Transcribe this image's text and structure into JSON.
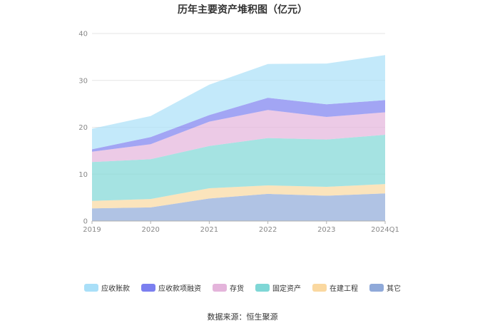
{
  "source_text": "数据来源：恒生聚源",
  "chart_data": {
    "type": "area",
    "stacked": true,
    "title": "历年主要资产堆积图（亿元）",
    "categories": [
      "2019",
      "2020",
      "2021",
      "2022",
      "2023",
      "2024Q1"
    ],
    "ylim": [
      0,
      40
    ],
    "yticks": [
      0,
      10,
      20,
      30,
      40
    ],
    "grid": true,
    "legend_position": "bottom",
    "series": [
      {
        "name": "其它",
        "color": "#8fa9d9",
        "values": [
          2.7,
          2.9,
          4.8,
          5.8,
          5.4,
          5.9
        ]
      },
      {
        "name": "在建工程",
        "color": "#fad8a0",
        "values": [
          1.6,
          1.8,
          2.2,
          1.8,
          1.9,
          2.0
        ]
      },
      {
        "name": "固定资产",
        "color": "#7fd7d6",
        "values": [
          8.3,
          8.5,
          9.0,
          10.1,
          10.1,
          10.5
        ]
      },
      {
        "name": "存货",
        "color": "#e4b4db",
        "values": [
          2.2,
          3.2,
          5.2,
          6.0,
          4.8,
          4.8
        ]
      },
      {
        "name": "应收款项融资",
        "color": "#7b7ff0",
        "values": [
          0.5,
          1.5,
          1.4,
          2.6,
          2.7,
          2.6
        ]
      },
      {
        "name": "应收账款",
        "color": "#a9dff8",
        "values": [
          4.4,
          4.5,
          6.5,
          7.2,
          8.7,
          9.6
        ]
      }
    ]
  }
}
